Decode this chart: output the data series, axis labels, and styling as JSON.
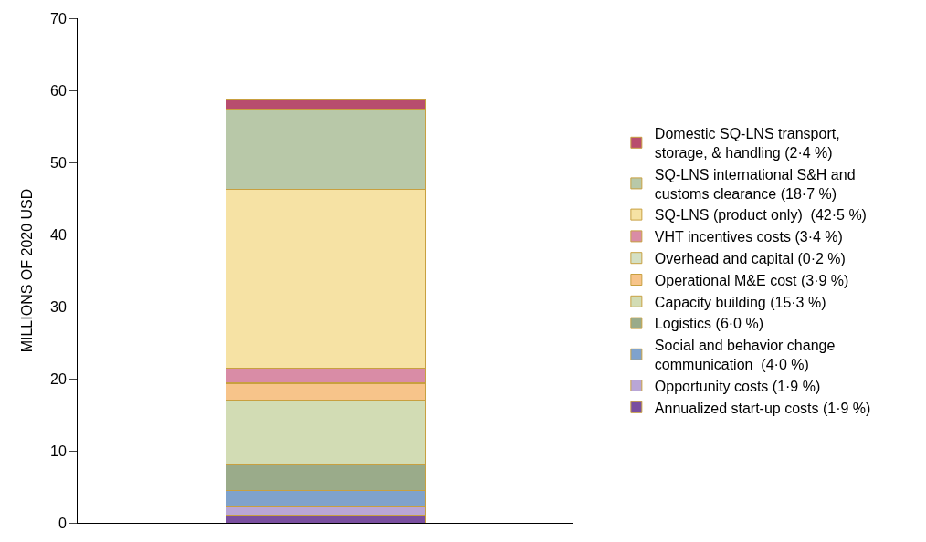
{
  "chart_data": {
    "type": "bar",
    "stacked": true,
    "ylabel": "MILLIONS OF 2020 USD",
    "categories": [
      null
    ],
    "ylim": [
      0,
      70
    ],
    "yticks": [
      0,
      10,
      20,
      30,
      40,
      50,
      60,
      70
    ],
    "legend": "right",
    "tick_labels": "y",
    "series": [
      {
        "name": "Annualized start-up costs (1·9 %)",
        "color": "#7a4fa0",
        "values": [
          1.1
        ]
      },
      {
        "name": "Opportunity costs (1·9 %)",
        "color": "#b9a6d6",
        "values": [
          1.1
        ]
      },
      {
        "name": "Social and behavior change communication  (4·0 %)",
        "color": "#7fa2cc",
        "values": [
          2.3
        ]
      },
      {
        "name": "Logistics (6·0 %)",
        "color": "#9aab8a",
        "values": [
          3.5
        ]
      },
      {
        "name": "Capacity building (15·3 %)",
        "color": "#d2dcb4",
        "values": [
          9.0
        ]
      },
      {
        "name": "Operational M&E cost (3·9 %)",
        "color": "#f7c48a",
        "values": [
          2.3
        ]
      },
      {
        "name": "Overhead and capital (0·2 %)",
        "color": "#d4e0c4",
        "values": [
          0.1
        ]
      },
      {
        "name": "VHT incentives costs (3·4 %)",
        "color": "#d98ca6",
        "values": [
          2.0
        ]
      },
      {
        "name": "SQ-LNS (product only)  (42·5 %)",
        "color": "#f6e2a4",
        "values": [
          24.9
        ]
      },
      {
        "name": "SQ-LNS international S&H and customs clearance (18·7 %)",
        "color": "#b8c8a8",
        "values": [
          11.0
        ]
      },
      {
        "name": "Domestic SQ-LNS transport, storage, & handling (2·4 %)",
        "color": "#b84d6e",
        "values": [
          1.4
        ]
      }
    ]
  }
}
